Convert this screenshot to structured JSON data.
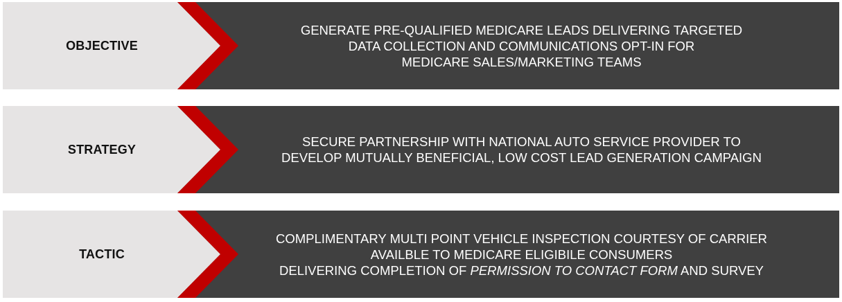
{
  "colors": {
    "label_bg": "#e6e4e4",
    "content_bg": "#404040",
    "chevron": "#c00000",
    "label_text": "#111111",
    "content_text": "#ffffff"
  },
  "rows": [
    {
      "label": "OBJECTIVE",
      "lines": [
        "GENERATE PRE-QUALIFIED MEDICARE LEADS DELIVERING TARGETED",
        "DATA COLLECTION AND COMMUNICATIONS OPT-IN FOR",
        "MEDICARE SALES/MARKETING TEAMS"
      ]
    },
    {
      "label": "STRATEGY",
      "lines": [
        "SECURE PARTNERSHIP WITH NATIONAL AUTO SERVICE PROVIDER TO",
        "DEVELOP MUTUALLY BENEFICIAL, LOW COST LEAD GENERATION CAMPAIGN"
      ]
    },
    {
      "label": "TACTIC",
      "lines": [
        "COMPLIMENTARY MULTI POINT VEHICLE INSPECTION COURTESY OF CARRIER",
        "AVAILBLE TO MEDICARE ELIGIBILE CONSUMERS"
      ],
      "last_line": {
        "before": "DELIVERING COMPLETION OF ",
        "italic": "PERMISSION TO CONTACT FORM",
        "after": " AND SURVEY"
      }
    }
  ]
}
